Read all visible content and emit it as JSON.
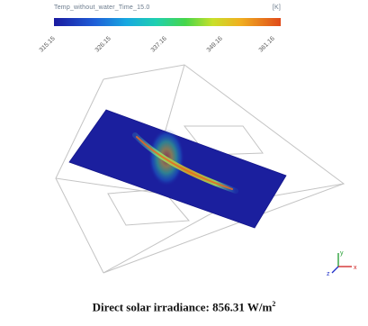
{
  "legend": {
    "title": "Temp_without_water_Time_15.0",
    "unit": "[K]",
    "ticks": [
      "315.15",
      "326.15",
      "337.16",
      "349.16",
      "361.16"
    ]
  },
  "caption": {
    "text": "Direct solar irradiance: 856.31 W/m",
    "superscript": "2"
  },
  "axes_icon": {
    "labels": [
      "y",
      "x",
      "z"
    ]
  },
  "colors": {
    "cold": "#1a1a9c",
    "hot": "#e04a1a",
    "wire": "#bdbdbd"
  }
}
